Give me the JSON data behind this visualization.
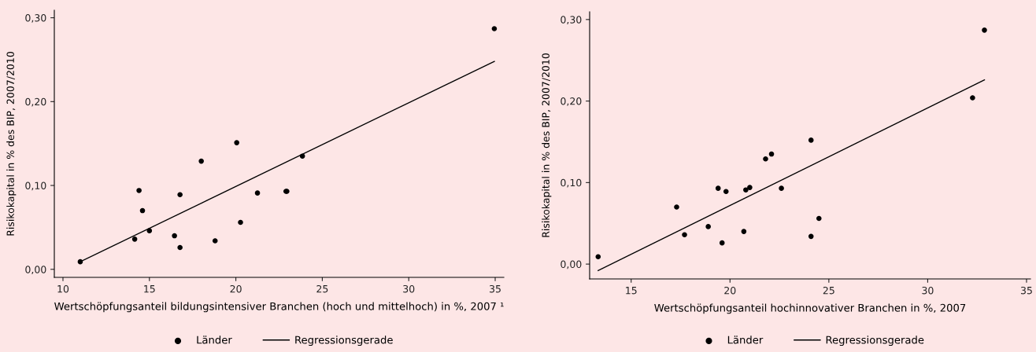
{
  "chart_data": [
    {
      "type": "scatter",
      "xlabel": "Wertschöpfungsanteil bildungsintensiver Branchen (hoch und mittelhoch) in %, 2007 ¹",
      "ylabel": "Risikokapital in % des BIP, 2007/2010",
      "xlim": [
        9.5,
        35.5
      ],
      "ylim": [
        -0.0096,
        0.309
      ],
      "xticks": [
        10,
        15,
        20,
        25,
        30,
        35
      ],
      "yticks": [
        {
          "value": 0,
          "label": "0,00"
        },
        {
          "value": 0.1,
          "label": "0,10"
        },
        {
          "value": 0.2,
          "label": "0,20"
        },
        {
          "value": 0.3,
          "label": "0,30"
        }
      ],
      "grid": false,
      "legend": "bottom",
      "series": [
        {
          "name": "Länder",
          "type": "scatter",
          "color": "#000000",
          "marker": "circle",
          "x": [
            11.0,
            14.15,
            14.4,
            14.6,
            15.0,
            16.45,
            16.77,
            16.77,
            18.0,
            18.8,
            20.05,
            20.27,
            21.25,
            22.9,
            22.95,
            23.85,
            34.95
          ],
          "values": [
            0.009,
            0.036,
            0.094,
            0.07,
            0.046,
            0.04,
            0.089,
            0.026,
            0.129,
            0.034,
            0.151,
            0.056,
            0.091,
            0.093,
            0.093,
            0.135,
            0.287
          ]
        },
        {
          "name": "Regressionsgerade",
          "type": "line",
          "color": "#000000",
          "marker": "none",
          "line_style": "solid",
          "x": [
            11.0,
            34.95
          ],
          "values": [
            0.009,
            0.248
          ]
        }
      ]
    },
    {
      "type": "scatter",
      "xlabel": "Wertschöpfungsanteil hochinnovativer Branchen in %, 2007",
      "ylabel": "Risikokapital in % des BIP, 2007/2010",
      "xlim": [
        12.9,
        35.2
      ],
      "ylim": [
        -0.0182,
        0.3095
      ],
      "xticks": [
        15,
        20,
        25,
        30,
        35
      ],
      "yticks": [
        {
          "value": 0,
          "label": "0,00"
        },
        {
          "value": 0.1,
          "label": "0,10"
        },
        {
          "value": 0.2,
          "label": "0,20"
        },
        {
          "value": 0.3,
          "label": "0,30"
        }
      ],
      "grid": false,
      "legend": "bottom",
      "series": [
        {
          "name": "Länder",
          "type": "scatter",
          "color": "#000000",
          "marker": "circle",
          "x": [
            13.33,
            17.3,
            17.7,
            18.9,
            19.4,
            19.8,
            19.6,
            20.7,
            20.8,
            21.0,
            21.8,
            22.1,
            22.6,
            24.1,
            24.1,
            24.5,
            32.27,
            32.87
          ],
          "values": [
            0.009,
            0.07,
            0.036,
            0.046,
            0.093,
            0.089,
            0.026,
            0.04,
            0.091,
            0.094,
            0.129,
            0.135,
            0.093,
            0.152,
            0.034,
            0.056,
            0.204,
            0.287
          ]
        },
        {
          "name": "Regressionsgerade",
          "type": "line",
          "color": "#000000",
          "marker": "none",
          "line_style": "solid",
          "x": [
            13.33,
            32.87
          ],
          "values": [
            -0.008,
            0.226
          ]
        }
      ]
    }
  ]
}
